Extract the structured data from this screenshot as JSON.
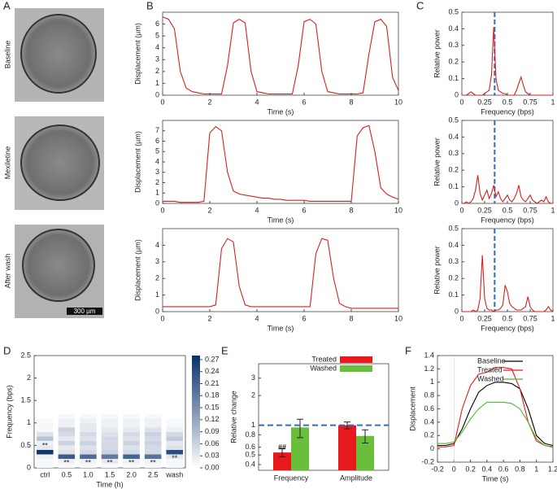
{
  "panel_labels": [
    "A",
    "B",
    "C",
    "D",
    "E",
    "F"
  ],
  "images": {
    "row_labels": [
      "Baseline",
      "Mexiletine",
      "After wash"
    ],
    "scale_bar": "300 µm"
  },
  "chart_data": [
    {
      "type": "line",
      "x": [
        0,
        0.25,
        0.5,
        0.75,
        1,
        1.25,
        1.5,
        1.75,
        2,
        2.25,
        2.5,
        2.75,
        3,
        3.25,
        3.5,
        3.75,
        4,
        4.25,
        4.5,
        4.75,
        5,
        5.25,
        5.5,
        5.75,
        6,
        6.25,
        6.5,
        6.75,
        7,
        7.25,
        7.5,
        7.75,
        8,
        8.25,
        8.5,
        8.75,
        9,
        9.25,
        9.5,
        9.75,
        10
      ],
      "values": [
        6.6,
        6.4,
        5.6,
        2.0,
        0.6,
        0.3,
        0.2,
        0.1,
        0.1,
        0.1,
        0.1,
        2.5,
        6.1,
        6.4,
        6.1,
        2.0,
        0.3,
        0.2,
        0.1,
        0.1,
        0.1,
        0.1,
        0.1,
        2.5,
        6.2,
        6.4,
        6.0,
        2.0,
        0.3,
        0.2,
        0.1,
        0.1,
        0.1,
        0.1,
        0.2,
        3.5,
        6.2,
        6.4,
        5.8,
        1.5,
        0.4
      ],
      "color": "#d62020",
      "xlim": [
        0,
        10
      ],
      "xticks": [
        0,
        2,
        4,
        6,
        8,
        10
      ],
      "ylim": [
        0,
        7
      ],
      "yticks": [
        0,
        1,
        2,
        3,
        4,
        5,
        6
      ],
      "xlabel": "Time (s)",
      "ylabel": "Displacement (µm)"
    },
    {
      "type": "line",
      "x": [
        0,
        0.25,
        0.5,
        0.75,
        1,
        1.25,
        1.5,
        1.75,
        2,
        2.25,
        2.5,
        2.75,
        3,
        3.25,
        3.5,
        3.75,
        4,
        4.25,
        4.5,
        4.75,
        5,
        5.25,
        5.5,
        5.75,
        6,
        6.25,
        6.5,
        6.75,
        7,
        7.25,
        7.5,
        7.75,
        8,
        8.25,
        8.5,
        8.75,
        9,
        9.25,
        9.5,
        9.75,
        10
      ],
      "values": [
        0.2,
        0.2,
        0.2,
        0.1,
        0.1,
        0.1,
        0.1,
        0.2,
        6.8,
        7.4,
        7.0,
        3.0,
        1.2,
        0.9,
        0.8,
        0.7,
        0.6,
        0.5,
        0.5,
        0.4,
        0.4,
        0.3,
        0.3,
        0.3,
        0.3,
        0.2,
        0.2,
        0.2,
        0.2,
        0.2,
        0.2,
        0.2,
        0.2,
        6.5,
        7.3,
        7.5,
        5.0,
        1.5,
        0.9,
        0.6,
        0.4
      ],
      "color": "#d62020",
      "xlim": [
        0,
        10
      ],
      "xticks": [
        0,
        2,
        4,
        6,
        8,
        10
      ],
      "ylim": [
        0,
        8
      ],
      "yticks": [
        0,
        1,
        2,
        3,
        4,
        5,
        6,
        7
      ],
      "xlabel": "Time (s)",
      "ylabel": "Displacement (µm)"
    },
    {
      "type": "line",
      "x": [
        0,
        0.25,
        0.5,
        0.75,
        1,
        1.25,
        1.5,
        1.75,
        2,
        2.25,
        2.5,
        2.75,
        3,
        3.25,
        3.5,
        3.75,
        4,
        4.25,
        4.5,
        4.75,
        5,
        5.25,
        5.5,
        5.75,
        6,
        6.25,
        6.5,
        6.75,
        7,
        7.25,
        7.5,
        7.75,
        8,
        8.25,
        8.5,
        8.75,
        9,
        9.25,
        9.5,
        9.75,
        10
      ],
      "values": [
        0.3,
        0.3,
        0.3,
        0.3,
        0.3,
        0.3,
        0.3,
        0.3,
        0.3,
        0.4,
        3.8,
        4.4,
        4.2,
        1.5,
        0.4,
        0.3,
        0.3,
        0.3,
        0.3,
        0.3,
        0.3,
        0.3,
        0.3,
        0.3,
        0.3,
        0.3,
        3.5,
        4.4,
        4.3,
        2.0,
        0.5,
        0.3,
        0.2,
        0.2,
        0.2,
        0.2,
        0.2,
        0.2,
        0.2,
        0.2,
        0.2
      ],
      "color": "#d62020",
      "xlim": [
        0,
        10
      ],
      "xticks": [
        0,
        2,
        4,
        6,
        8,
        10
      ],
      "ylim": [
        0,
        5
      ],
      "yticks": [
        0,
        1,
        2,
        3,
        4
      ],
      "xlabel": "Time (s)",
      "ylabel": "Displacement  (µm)"
    },
    {
      "type": "line",
      "x": [
        0,
        0.025,
        0.05,
        0.075,
        0.1,
        0.125,
        0.15,
        0.175,
        0.2,
        0.225,
        0.25,
        0.275,
        0.3,
        0.325,
        0.35,
        0.375,
        0.4,
        0.425,
        0.45,
        0.475,
        0.5,
        0.525,
        0.55,
        0.575,
        0.6,
        0.625,
        0.65,
        0.675,
        0.7,
        0.725,
        0.75,
        0.775,
        0.8,
        0.825,
        0.85,
        0.875,
        0.9,
        0.925,
        0.95,
        0.975,
        1
      ],
      "values": [
        0,
        0,
        0,
        0.01,
        0.02,
        0.01,
        0,
        0,
        0,
        0,
        0.01,
        0.02,
        0.03,
        0.12,
        0.41,
        0.1,
        0.03,
        0.02,
        0.01,
        0.01,
        0,
        0,
        0,
        0,
        0.03,
        0.07,
        0.11,
        0.06,
        0.02,
        0.01,
        0,
        0,
        0,
        0,
        0,
        0,
        0,
        0,
        0,
        0,
        0
      ],
      "color": "#d62020",
      "xlim": [
        0,
        1
      ],
      "xticks": [
        0,
        0.25,
        0.5,
        0.75,
        1
      ],
      "ylim": [
        0,
        0.5
      ],
      "yticks": [
        0,
        0.1,
        0.2,
        0.3,
        0.4,
        0.5
      ],
      "reference_line": {
        "x": 0.36,
        "color": "#2e6fc4"
      },
      "xlabel": "Frequency (bps)",
      "ylabel": "Relative power"
    },
    {
      "type": "line",
      "x": [
        0,
        0.025,
        0.05,
        0.075,
        0.1,
        0.125,
        0.15,
        0.175,
        0.2,
        0.225,
        0.25,
        0.275,
        0.3,
        0.325,
        0.35,
        0.375,
        0.4,
        0.425,
        0.45,
        0.475,
        0.5,
        0.525,
        0.55,
        0.575,
        0.6,
        0.625,
        0.65,
        0.675,
        0.7,
        0.725,
        0.75,
        0.775,
        0.8,
        0.825,
        0.85,
        0.875,
        0.9,
        0.925,
        0.95,
        0.975,
        1
      ],
      "values": [
        0,
        0,
        0.01,
        0,
        0.01,
        0.03,
        0.08,
        0.17,
        0.06,
        0.02,
        0.05,
        0.08,
        0.03,
        0.06,
        0.11,
        0.04,
        0.07,
        0.03,
        0.01,
        0.03,
        0.05,
        0.02,
        0.01,
        0.03,
        0.06,
        0.11,
        0.04,
        0.02,
        0.01,
        0.03,
        0.05,
        0.02,
        0.01,
        0,
        0.01,
        0.02,
        0.01,
        0.04,
        0.01,
        0,
        0
      ],
      "color": "#d62020",
      "xlim": [
        0,
        1
      ],
      "xticks": [
        0,
        0.25,
        0.5,
        0.75,
        1
      ],
      "ylim": [
        0,
        0.5
      ],
      "yticks": [
        0,
        0.1,
        0.2,
        0.3,
        0.4,
        0.5
      ],
      "reference_line": {
        "x": 0.36,
        "color": "#2e6fc4"
      },
      "xlabel": "Frequency (bps)",
      "ylabel": "Relative power"
    },
    {
      "type": "line",
      "x": [
        0,
        0.025,
        0.05,
        0.075,
        0.1,
        0.125,
        0.15,
        0.175,
        0.2,
        0.225,
        0.25,
        0.275,
        0.3,
        0.325,
        0.35,
        0.375,
        0.4,
        0.425,
        0.45,
        0.475,
        0.5,
        0.525,
        0.55,
        0.575,
        0.6,
        0.625,
        0.65,
        0.675,
        0.7,
        0.725,
        0.75,
        0.775,
        0.8,
        0.825,
        0.85,
        0.875,
        0.9,
        0.925,
        0.95,
        0.975,
        1
      ],
      "values": [
        0,
        0,
        0,
        0,
        0,
        0.01,
        0,
        0.01,
        0.08,
        0.34,
        0.08,
        0.02,
        0.01,
        0.01,
        0,
        0.01,
        0.01,
        0.02,
        0.04,
        0.16,
        0.12,
        0.05,
        0.03,
        0.02,
        0.01,
        0.01,
        0.01,
        0.02,
        0.03,
        0.09,
        0.03,
        0.01,
        0,
        0,
        0,
        0,
        0,
        0.01,
        0.03,
        0.01,
        0
      ],
      "color": "#d62020",
      "xlim": [
        0,
        1
      ],
      "xticks": [
        0,
        0.25,
        0.5,
        0.75,
        1
      ],
      "ylim": [
        0,
        0.5
      ],
      "yticks": [
        0,
        0.1,
        0.2,
        0.3,
        0.4,
        0.5
      ],
      "reference_line": {
        "x": 0.36,
        "color": "#2e6fc4"
      },
      "xlabel": "Frequency (bps)",
      "ylabel": "Relative power"
    },
    {
      "type": "heatmap",
      "categories": [
        "ctrl",
        "0.5",
        "1.0",
        "1.5",
        "2.0",
        "2.5",
        "wash"
      ],
      "ybins": [
        0,
        0.1,
        0.2,
        0.3,
        0.4,
        0.5,
        0.6,
        0.7,
        0.8,
        0.9,
        1.0,
        1.1,
        1.2
      ],
      "z": [
        [
          0.01,
          0.01,
          0.02,
          0.27,
          0.03,
          0.02,
          0.08,
          0.04,
          0.01,
          0.01,
          0.01,
          0.0
        ],
        [
          0.01,
          0.02,
          0.22,
          0.04,
          0.03,
          0.06,
          0.03,
          0.05,
          0.06,
          0.02,
          0.02,
          0.01
        ],
        [
          0.01,
          0.02,
          0.2,
          0.05,
          0.04,
          0.06,
          0.04,
          0.05,
          0.03,
          0.03,
          0.02,
          0.01
        ],
        [
          0.01,
          0.03,
          0.18,
          0.06,
          0.05,
          0.05,
          0.05,
          0.04,
          0.03,
          0.02,
          0.02,
          0.01
        ],
        [
          0.01,
          0.02,
          0.21,
          0.05,
          0.04,
          0.06,
          0.04,
          0.05,
          0.03,
          0.02,
          0.02,
          0.01
        ],
        [
          0.01,
          0.02,
          0.19,
          0.05,
          0.05,
          0.06,
          0.05,
          0.06,
          0.04,
          0.02,
          0.02,
          0.01
        ],
        [
          0.01,
          0.01,
          0.03,
          0.24,
          0.04,
          0.03,
          0.07,
          0.05,
          0.02,
          0.01,
          0.01,
          0.0
        ]
      ],
      "ylim": [
        0,
        2.5
      ],
      "yticks": [
        0,
        0.5,
        1,
        1.5,
        2,
        2.5
      ],
      "clim": [
        0,
        0.28
      ],
      "cticks": [
        {
          "value": 0,
          "label": "0.00"
        },
        {
          "value": 0.03,
          "label": "0.03"
        },
        {
          "value": 0.06,
          "label": "0.06"
        },
        {
          "value": 0.09,
          "label": "0.09"
        },
        {
          "value": 0.12,
          "label": "0.12"
        },
        {
          "value": 0.15,
          "label": "0.15"
        },
        {
          "value": 0.18,
          "label": "0.18"
        },
        {
          "value": 0.21,
          "label": "0.21"
        },
        {
          "value": 0.24,
          "label": "0.24"
        },
        {
          "value": 0.27,
          "label": "0.27"
        }
      ],
      "colors": [
        "#ffffff",
        "#08306b"
      ],
      "significance": [
        "**",
        "**",
        "**",
        "**",
        "**",
        "**",
        "**"
      ],
      "xlabel": "Time (h)",
      "ylabel": "Frequency (bps)"
    },
    {
      "type": "bar",
      "categories": [
        "Frequency",
        "Amplitude"
      ],
      "series": [
        {
          "name": "Treated",
          "color": "#e8191c",
          "values": [
            0.53,
            1.0
          ],
          "errors": [
            0.05,
            0.08
          ],
          "significance": [
            "##",
            null
          ]
        },
        {
          "name": "Washed",
          "color": "#6abf3a",
          "values": [
            0.95,
            0.78
          ],
          "errors": [
            0.2,
            0.12
          ]
        }
      ],
      "log_y": true,
      "ylim": [
        0.35,
        4.2
      ],
      "yticks": [
        0.4,
        0.5,
        0.6,
        0.8,
        1,
        2,
        3
      ],
      "reference_line": {
        "y": 1,
        "color": "#2e6fc4"
      },
      "ylabel": "Relative change",
      "legend": "top-right"
    },
    {
      "type": "line",
      "x": [
        -0.2,
        -0.1,
        0,
        0.1,
        0.2,
        0.3,
        0.4,
        0.5,
        0.6,
        0.7,
        0.8,
        0.9,
        1.0,
        1.1,
        1.2
      ],
      "series": [
        {
          "name": "Baseline",
          "color": "#000000",
          "values": [
            0.05,
            0.05,
            0.08,
            0.3,
            0.6,
            0.85,
            0.95,
            1.0,
            1.0,
            0.98,
            0.9,
            0.6,
            0.2,
            0.08,
            0.05
          ]
        },
        {
          "name": "Treated",
          "color": "#e8191c",
          "values": [
            0.03,
            0.03,
            0.05,
            0.6,
            0.95,
            1.12,
            1.15,
            1.22,
            1.22,
            1.2,
            0.9,
            0.4,
            0.12,
            0.05,
            0.03
          ]
        },
        {
          "name": "Washed",
          "color": "#4fb82e",
          "values": [
            0.08,
            0.08,
            0.1,
            0.25,
            0.45,
            0.6,
            0.7,
            0.7,
            0.7,
            0.68,
            0.6,
            0.4,
            0.15,
            0.05,
            0.02
          ]
        }
      ],
      "xlim": [
        -0.2,
        1.2
      ],
      "xticks": [
        -0.2,
        0,
        0.2,
        0.4,
        0.6,
        0.8,
        1,
        1.2
      ],
      "ylim": [
        -0.2,
        1.4
      ],
      "yticks": [
        -0.2,
        0,
        0.2,
        0.4,
        0.6,
        0.8,
        1,
        1.2,
        1.4
      ],
      "xlabel": "Time (s)",
      "ylabel": "Displacement",
      "legend": "top"
    }
  ]
}
